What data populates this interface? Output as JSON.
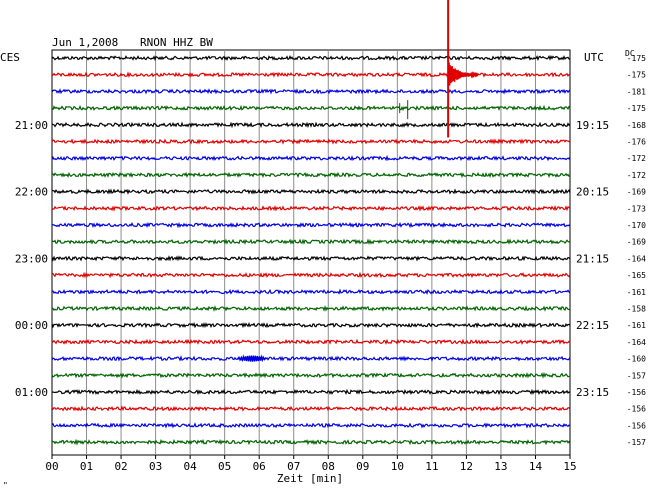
{
  "header": {
    "date": "Jun 1,2008",
    "station": "RNON HHZ BW",
    "left_tz": "CES",
    "right_tz": "UTC",
    "dc_label": "DC",
    "corner_mark": "\""
  },
  "chart_data": {
    "type": "line",
    "title": "Jun 1,2008   RNON HHZ BW",
    "xlabel": "Zeit [min]",
    "xlim": [
      0,
      15
    ],
    "x_ticks": [
      "00",
      "01",
      "02",
      "03",
      "04",
      "05",
      "06",
      "07",
      "08",
      "09",
      "10",
      "11",
      "12",
      "13",
      "14",
      "15"
    ],
    "trace_colors": [
      "#000000",
      "#e00000",
      "#0000e0",
      "#006400"
    ],
    "left_time_labels": [
      {
        "row": 4,
        "text": "21:00"
      },
      {
        "row": 8,
        "text": "22:00"
      },
      {
        "row": 12,
        "text": "23:00"
      },
      {
        "row": 16,
        "text": "00:00"
      },
      {
        "row": 20,
        "text": "01:00"
      }
    ],
    "right_time_labels": [
      {
        "row": 4,
        "text": "19:15"
      },
      {
        "row": 8,
        "text": "20:15"
      },
      {
        "row": 12,
        "text": "21:15"
      },
      {
        "row": 16,
        "text": "22:15"
      },
      {
        "row": 20,
        "text": "23:15"
      }
    ],
    "dc_offsets": [
      -175,
      -175,
      -181,
      -175,
      -168,
      -176,
      -172,
      -172,
      -169,
      -173,
      -170,
      -169,
      -164,
      -165,
      -161,
      -158,
      -161,
      -164,
      -160,
      -157,
      -156,
      -156,
      -156,
      -157
    ],
    "events": [
      {
        "row": 1,
        "minute": 11.5,
        "type": "large earthquake"
      },
      {
        "row": 3,
        "minute": 10.3,
        "type": "small spike"
      },
      {
        "row": 18,
        "minute": 5.8,
        "type": "wave packet"
      }
    ]
  }
}
